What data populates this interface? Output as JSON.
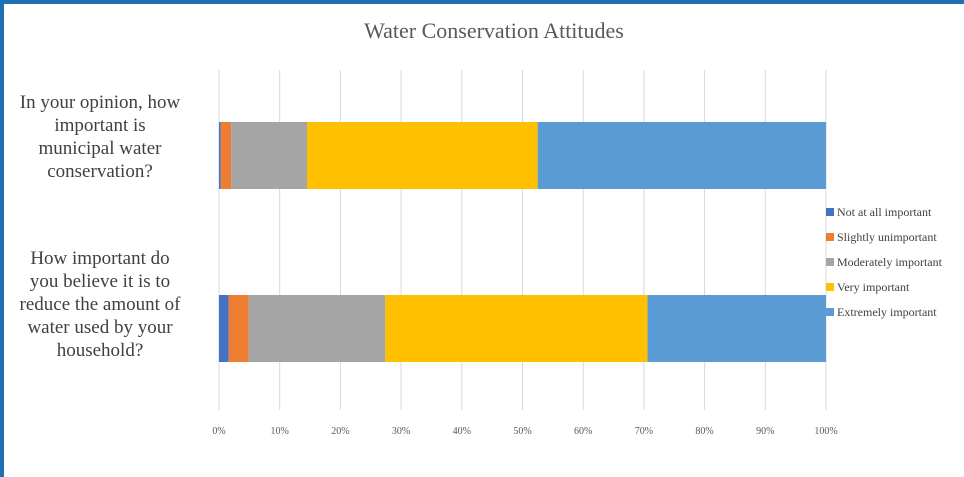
{
  "chart_data": {
    "type": "bar",
    "orientation": "horizontal",
    "stacked": "percent",
    "title": "Water Conservation Attitudes",
    "categories": [
      "In your opinion, how important is municipal water conservation?",
      "How important do you believe it is to reduce the amount of water used by your household?"
    ],
    "category_lines": [
      [
        "In your opinion, how",
        "important is",
        "municipal water",
        "conservation?"
      ],
      [
        "How important do",
        "you believe it is to",
        "reduce the amount of",
        "water used by your",
        "household?"
      ]
    ],
    "series": [
      {
        "name": "Not at all important",
        "color": "#4472c4",
        "values": [
          0.3,
          1.6
        ]
      },
      {
        "name": "Slightly unimportant",
        "color": "#ed7d31",
        "values": [
          1.7,
          3.3
        ]
      },
      {
        "name": "Moderately important",
        "color": "#a5a5a5",
        "values": [
          12.5,
          22.5
        ]
      },
      {
        "name": "Very important",
        "color": "#ffc000",
        "values": [
          38.0,
          43.2
        ]
      },
      {
        "name": "Extremely important",
        "color": "#5b9bd5",
        "values": [
          47.5,
          29.4
        ]
      }
    ],
    "xlim": [
      0,
      100
    ],
    "xticks": [
      "0%",
      "10%",
      "20%",
      "30%",
      "40%",
      "50%",
      "60%",
      "70%",
      "80%",
      "90%",
      "100%"
    ],
    "grid": true,
    "legend_position": "right"
  }
}
